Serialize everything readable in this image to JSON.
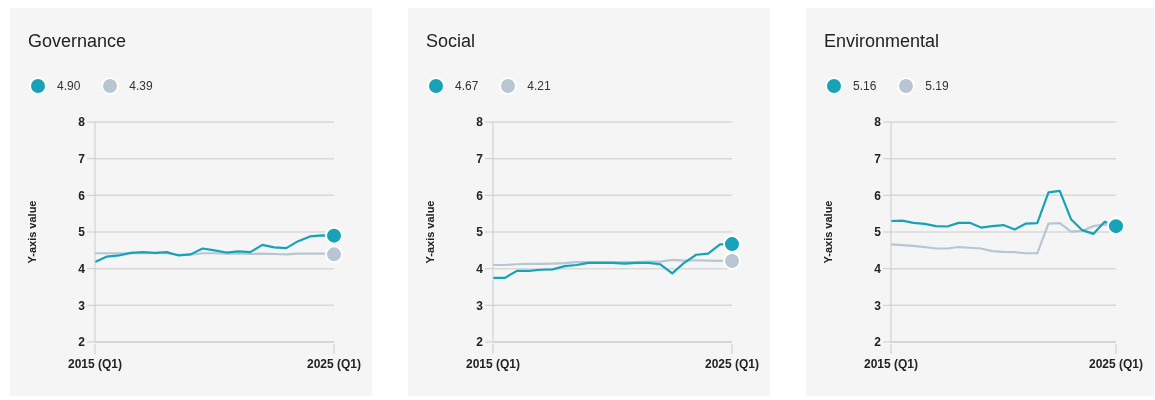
{
  "chart_data": [
    {
      "type": "line",
      "title": "Governance",
      "ylabel": "Y-axis value",
      "categories": [
        "2015 (Q1)",
        null,
        null,
        null,
        null,
        null,
        null,
        null,
        null,
        null,
        null,
        null,
        null,
        null,
        null,
        null,
        null,
        null,
        null,
        null,
        "2025 (Q1)"
      ],
      "series": [
        {
          "name": "4.90",
          "color": "#17a2b8",
          "values": [
            4.18,
            4.33,
            4.36,
            4.43,
            4.45,
            4.43,
            4.45,
            4.36,
            4.39,
            4.55,
            4.5,
            4.44,
            4.47,
            4.45,
            4.65,
            4.58,
            4.56,
            4.75,
            4.88,
            4.91,
            4.9
          ]
        },
        {
          "name": "4.39",
          "color": "#b8c6d2",
          "values": [
            4.42,
            4.42,
            4.42,
            4.42,
            4.42,
            4.42,
            4.42,
            4.38,
            4.38,
            4.42,
            4.42,
            4.41,
            4.41,
            4.4,
            4.41,
            4.4,
            4.39,
            4.41,
            4.41,
            4.41,
            4.39
          ]
        }
      ],
      "ylim": [
        2,
        8
      ],
      "yticks": [
        2,
        3,
        4,
        5,
        6,
        7,
        8
      ],
      "grid": "y",
      "legend": "top left"
    },
    {
      "type": "line",
      "title": "Social",
      "ylabel": "Y-axis value",
      "categories": [
        "2015 (Q1)",
        null,
        null,
        null,
        null,
        null,
        null,
        null,
        null,
        null,
        null,
        null,
        null,
        null,
        null,
        null,
        null,
        null,
        null,
        null,
        "2025 (Q1)"
      ],
      "series": [
        {
          "name": "4.67",
          "color": "#17a2b8",
          "values": [
            3.75,
            3.75,
            3.94,
            3.94,
            3.97,
            3.98,
            4.07,
            4.1,
            4.16,
            4.16,
            4.16,
            4.14,
            4.16,
            4.16,
            4.12,
            3.87,
            4.16,
            4.38,
            4.41,
            4.66,
            4.67
          ]
        },
        {
          "name": "4.21",
          "color": "#b8c6d2",
          "values": [
            4.1,
            4.1,
            4.12,
            4.13,
            4.13,
            4.14,
            4.15,
            4.18,
            4.18,
            4.18,
            4.18,
            4.18,
            4.18,
            4.19,
            4.19,
            4.24,
            4.22,
            4.23,
            4.22,
            4.21,
            4.21
          ]
        }
      ],
      "ylim": [
        2,
        8
      ],
      "yticks": [
        2,
        3,
        4,
        5,
        6,
        7,
        8
      ],
      "grid": "y",
      "legend": "top left"
    },
    {
      "type": "line",
      "title": "Environmental",
      "ylabel": "Y-axis value",
      "categories": [
        "2015 (Q1)",
        null,
        null,
        null,
        null,
        null,
        null,
        null,
        null,
        null,
        null,
        null,
        null,
        null,
        null,
        null,
        null,
        null,
        null,
        null,
        "2025 (Q1)"
      ],
      "series": [
        {
          "name": "5.16",
          "color": "#17a2b8",
          "values": [
            5.3,
            5.31,
            5.25,
            5.22,
            5.16,
            5.15,
            5.25,
            5.25,
            5.12,
            5.16,
            5.19,
            5.07,
            5.23,
            5.24,
            6.08,
            6.12,
            5.35,
            5.05,
            4.95,
            5.28,
            5.16
          ]
        },
        {
          "name": "5.19",
          "color": "#b8c6d2",
          "values": [
            4.66,
            4.64,
            4.62,
            4.59,
            4.55,
            4.55,
            4.59,
            4.57,
            4.55,
            4.48,
            4.46,
            4.45,
            4.42,
            4.42,
            5.23,
            5.24,
            5.01,
            5.03,
            5.16,
            5.21,
            5.19
          ]
        }
      ],
      "ylim": [
        2,
        8
      ],
      "yticks": [
        2,
        3,
        4,
        5,
        6,
        7,
        8
      ],
      "grid": "y",
      "legend": "top left"
    }
  ]
}
